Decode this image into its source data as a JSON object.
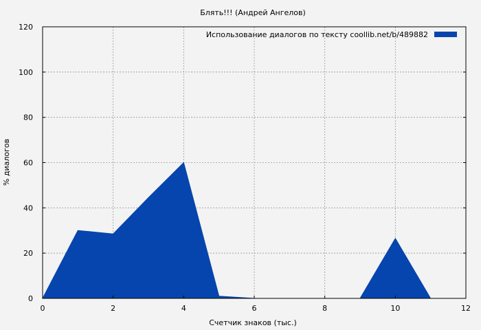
{
  "chart_data": {
    "type": "area",
    "title": "Блять!!! (Андрей Ангелов)",
    "xlabel": "Счетчик знаков (тыс.)",
    "ylabel": "% диалогов",
    "xlim": [
      0,
      12
    ],
    "ylim": [
      0,
      120
    ],
    "x_ticks": [
      "0",
      "2",
      "4",
      "6",
      "8",
      "10",
      "12"
    ],
    "y_ticks": [
      "0",
      "20",
      "40",
      "60",
      "80",
      "100",
      "120"
    ],
    "grid": true,
    "legend_position": "top-right",
    "series": [
      {
        "name": "Использование диалогов по тексту  coollib.net/b/489882",
        "color": "#0645ad",
        "x": [
          0,
          1,
          2,
          3,
          4,
          5,
          6,
          7,
          8,
          9,
          10,
          11,
          12
        ],
        "y": [
          0,
          30,
          28.5,
          44.5,
          60,
          1,
          0,
          0,
          0,
          0,
          26.5,
          0,
          0
        ]
      }
    ]
  }
}
